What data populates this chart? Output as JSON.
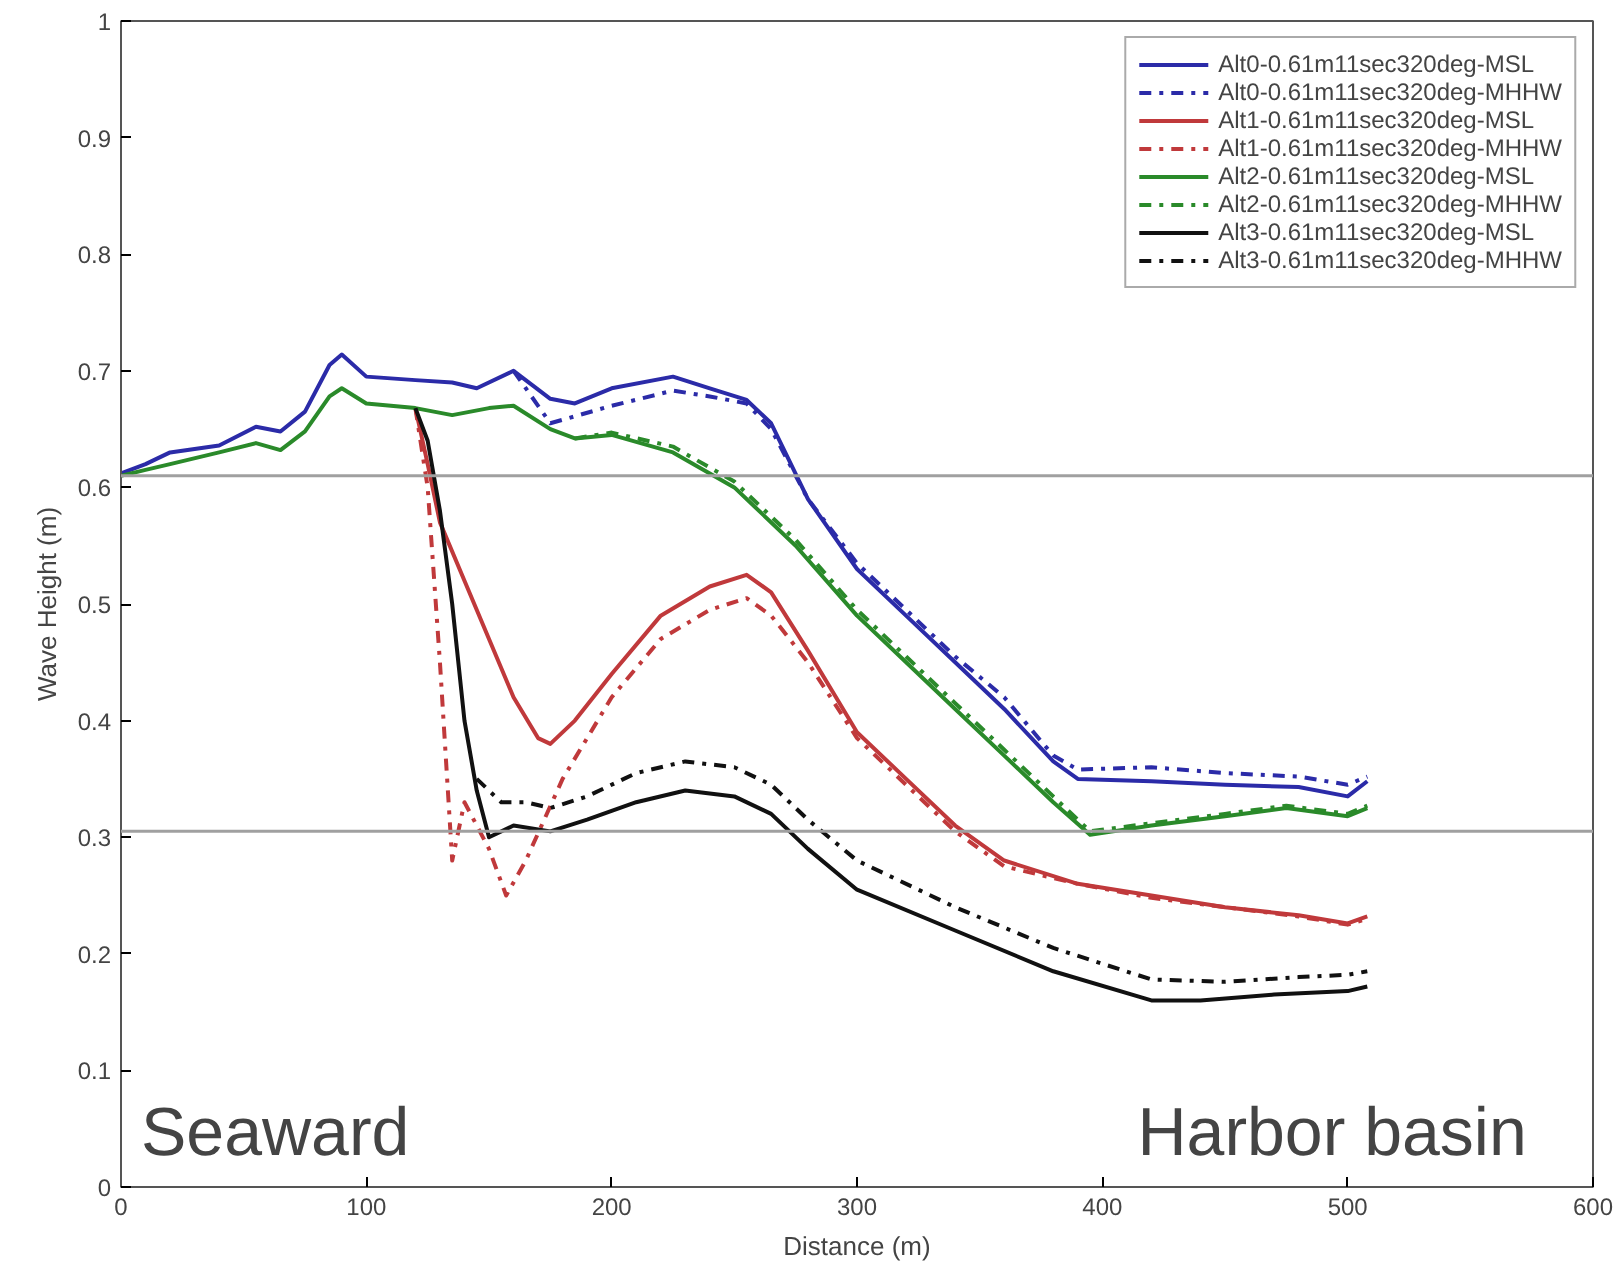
{
  "chart_data": {
    "type": "line",
    "xlabel": "Distance (m)",
    "ylabel": "Wave Height (m)",
    "xlim": [
      0,
      600
    ],
    "ylim": [
      0,
      1
    ],
    "xticks": [
      0,
      100,
      200,
      300,
      400,
      500,
      600
    ],
    "yticks": [
      0,
      0.1,
      0.2,
      0.3,
      0.4,
      0.5,
      0.6,
      0.7,
      0.8,
      0.9,
      1
    ],
    "grid": false,
    "legend": "top right",
    "marker": "none",
    "annotations": [
      "Seaward",
      "Harbor basin"
    ],
    "ref_lines": [
      {
        "axis": "y",
        "value": 0.61,
        "color": "#a0a0a0"
      },
      {
        "axis": "y",
        "value": 0.305,
        "color": "#a0a0a0"
      }
    ],
    "series": [
      {
        "name": "Alt0-0.61m11sec320deg-MSL",
        "color": "#2b2ba8",
        "line_style": "solid",
        "x": [
          0,
          10,
          20,
          40,
          55,
          65,
          75,
          85,
          90,
          100,
          120,
          135,
          145,
          160,
          175,
          185,
          200,
          225,
          240,
          255,
          265,
          280,
          300,
          320,
          340,
          360,
          380,
          390,
          420,
          450,
          480,
          500,
          508
        ],
        "values": [
          0.612,
          0.62,
          0.63,
          0.636,
          0.652,
          0.648,
          0.665,
          0.705,
          0.714,
          0.695,
          0.692,
          0.69,
          0.685,
          0.7,
          0.676,
          0.672,
          0.685,
          0.695,
          0.685,
          0.675,
          0.655,
          0.59,
          0.53,
          0.49,
          0.45,
          0.41,
          0.365,
          0.35,
          0.348,
          0.345,
          0.343,
          0.335,
          0.348
        ]
      },
      {
        "name": "Alt0-0.61m11sec320deg-MHHW",
        "color": "#2b2ba8",
        "line_style": "dashdot",
        "x": [
          160,
          175,
          200,
          225,
          240,
          255,
          265,
          280,
          300,
          320,
          340,
          360,
          380,
          390,
          420,
          450,
          480,
          500,
          508
        ],
        "values": [
          0.7,
          0.655,
          0.67,
          0.683,
          0.678,
          0.672,
          0.65,
          0.59,
          0.535,
          0.495,
          0.455,
          0.42,
          0.37,
          0.358,
          0.36,
          0.355,
          0.352,
          0.345,
          0.352
        ]
      },
      {
        "name": "Alt1-0.61m11sec320deg-MSL",
        "color": "#c0393b",
        "line_style": "solid",
        "x": [
          120,
          125,
          130,
          140,
          150,
          160,
          170,
          175,
          185,
          200,
          220,
          240,
          255,
          265,
          280,
          300,
          320,
          340,
          360,
          390,
          420,
          450,
          480,
          500,
          508
        ],
        "values": [
          0.668,
          0.62,
          0.57,
          0.52,
          0.47,
          0.42,
          0.385,
          0.38,
          0.4,
          0.44,
          0.49,
          0.515,
          0.525,
          0.51,
          0.46,
          0.39,
          0.35,
          0.31,
          0.28,
          0.26,
          0.25,
          0.24,
          0.233,
          0.226,
          0.232
        ]
      },
      {
        "name": "Alt1-0.61m11sec320deg-MHHW",
        "color": "#c0393b",
        "line_style": "dashdot",
        "x": [
          120,
          125,
          130,
          135,
          140,
          150,
          157,
          165,
          180,
          200,
          220,
          240,
          255,
          265,
          280,
          300,
          320,
          340,
          360,
          390,
          420,
          450,
          480,
          500,
          508
        ],
        "values": [
          0.668,
          0.6,
          0.45,
          0.28,
          0.33,
          0.29,
          0.25,
          0.28,
          0.35,
          0.42,
          0.47,
          0.495,
          0.505,
          0.49,
          0.45,
          0.385,
          0.345,
          0.305,
          0.275,
          0.26,
          0.248,
          0.24,
          0.232,
          0.225,
          0.23
        ]
      },
      {
        "name": "Alt2-0.61m11sec320deg-MSL",
        "color": "#2a8a2a",
        "line_style": "solid",
        "x": [
          0,
          10,
          20,
          40,
          55,
          65,
          75,
          85,
          90,
          100,
          120,
          135,
          150,
          160,
          175,
          185,
          200,
          225,
          250,
          275,
          300,
          320,
          340,
          360,
          380,
          395,
          420,
          450,
          475,
          500,
          508
        ],
        "values": [
          0.61,
          0.615,
          0.62,
          0.63,
          0.638,
          0.632,
          0.648,
          0.678,
          0.685,
          0.672,
          0.668,
          0.662,
          0.668,
          0.67,
          0.65,
          0.642,
          0.645,
          0.63,
          0.6,
          0.55,
          0.49,
          0.45,
          0.41,
          0.37,
          0.33,
          0.302,
          0.31,
          0.318,
          0.325,
          0.318,
          0.325
        ]
      },
      {
        "name": "Alt2-0.61m11sec320deg-MHHW",
        "color": "#2a8a2a",
        "line_style": "dashdot",
        "x": [
          185,
          200,
          225,
          250,
          275,
          300,
          320,
          340,
          360,
          380,
          395,
          420,
          450,
          475,
          500,
          508
        ],
        "values": [
          0.642,
          0.647,
          0.635,
          0.605,
          0.555,
          0.495,
          0.455,
          0.415,
          0.375,
          0.335,
          0.305,
          0.312,
          0.32,
          0.327,
          0.32,
          0.327
        ]
      },
      {
        "name": "Alt3-0.61m11sec320deg-MSL",
        "color": "#111111",
        "line_style": "solid",
        "x": [
          120,
          125,
          130,
          135,
          140,
          145,
          150,
          160,
          175,
          190,
          210,
          230,
          250,
          265,
          280,
          300,
          340,
          380,
          420,
          440,
          470,
          500,
          508
        ],
        "values": [
          0.668,
          0.64,
          0.58,
          0.5,
          0.4,
          0.34,
          0.3,
          0.31,
          0.305,
          0.315,
          0.33,
          0.34,
          0.335,
          0.32,
          0.29,
          0.255,
          0.22,
          0.185,
          0.16,
          0.16,
          0.165,
          0.168,
          0.172
        ]
      },
      {
        "name": "Alt3-0.61m11sec320deg-MHHW",
        "color": "#111111",
        "line_style": "dashdot",
        "x": [
          145,
          155,
          165,
          175,
          190,
          210,
          230,
          250,
          265,
          280,
          300,
          340,
          380,
          420,
          450,
          480,
          500,
          508
        ],
        "values": [
          0.35,
          0.33,
          0.33,
          0.325,
          0.335,
          0.355,
          0.365,
          0.36,
          0.345,
          0.315,
          0.28,
          0.24,
          0.205,
          0.178,
          0.176,
          0.18,
          0.182,
          0.185
        ]
      }
    ]
  }
}
